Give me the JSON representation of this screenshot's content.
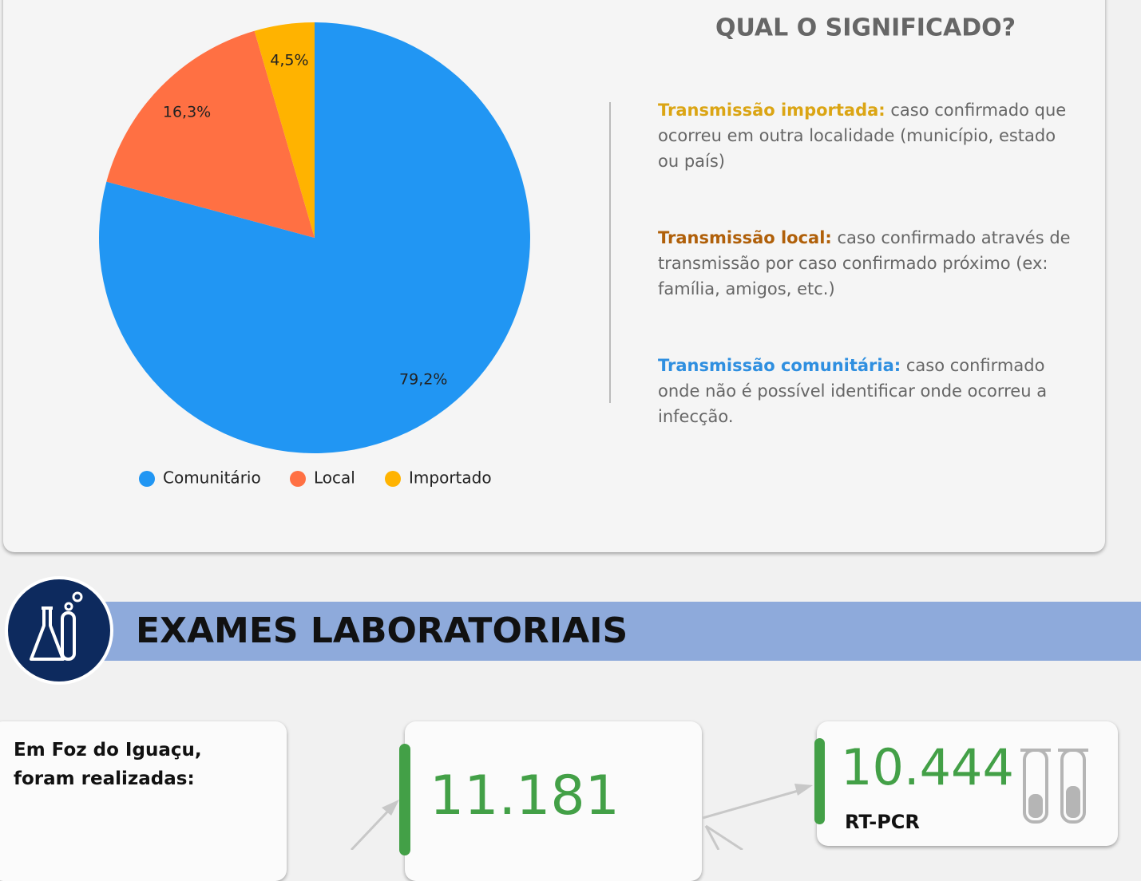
{
  "chart_data": {
    "type": "pie",
    "categories": [
      "Comunitário",
      "Local",
      "Importado"
    ],
    "values": [
      79.2,
      16.3,
      4.5
    ],
    "value_labels": [
      "79,2%",
      "16,3%",
      "4,5%"
    ],
    "colors": [
      "#2196f3",
      "#ff7043",
      "#ffb300"
    ],
    "legend": "bottom"
  },
  "explanation": {
    "title": "QUAL O SIGNIFICADO?",
    "items": [
      {
        "term": "Transmissão importada:",
        "text": " caso confirmado que ocorreu em outra localidade (município, estado ou país)",
        "color": "#dba514"
      },
      {
        "term": "Transmissão local:",
        "text": " caso confirmado através de transmissão por caso confirmado próximo (ex: família, amigos, etc.)",
        "color": "#b0600a"
      },
      {
        "term": "Transmissão comunitária:",
        "text": " caso confirmado onde não é possível identificar onde ocorreu a infecção.",
        "color": "#2f8fe0"
      }
    ]
  },
  "section": {
    "title": "EXAMES LABORATORIAIS"
  },
  "stats": {
    "intro": "Em Foz do Iguaçu, foram realizadas:",
    "total": "11.181",
    "rt_pcr": {
      "value": "10.444",
      "label": "RT-PCR"
    }
  }
}
